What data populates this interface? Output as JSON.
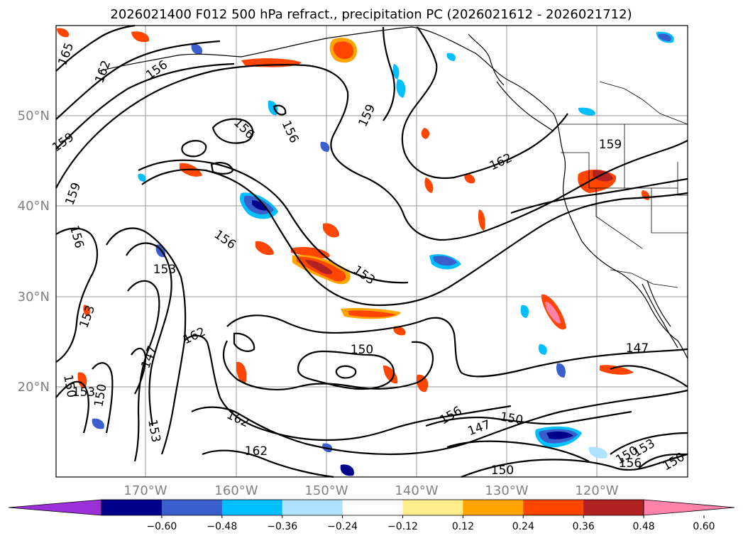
{
  "title": "2026021400 F012 500 hPa refract., precipitation PC (2026021612 - 2026021712)",
  "lat_labels": [
    "50°N",
    "40°N",
    "30°N",
    "20°N"
  ],
  "lon_labels": [
    "170°W",
    "160°W",
    "150°W",
    "140°W",
    "130°W",
    "120°W"
  ],
  "colorbar": {
    "colors": [
      "#9b30d9",
      "#00008b",
      "#3a5fcd",
      "#00bfff",
      "#b0e2ff",
      "#ffffff",
      "#ffec8b",
      "#ffa500",
      "#ff4500",
      "#b22222",
      "#ff82ab"
    ],
    "ticks": [
      "−0.60",
      "−0.48",
      "−0.36",
      "−0.24",
      "−0.12",
      "0.12",
      "0.24",
      "0.36",
      "0.48",
      "0.60"
    ]
  },
  "contour_labels": [
    "165",
    "162",
    "156",
    "159",
    "156",
    "156",
    "159",
    "159",
    "156",
    "153",
    "156",
    "162",
    "147",
    "150",
    "153",
    "150",
    "153",
    "153",
    "150",
    "162",
    "162",
    "153",
    "162",
    "159",
    "147",
    "150",
    "156",
    "147",
    "150",
    "150",
    "156",
    "153",
    "150"
  ]
}
